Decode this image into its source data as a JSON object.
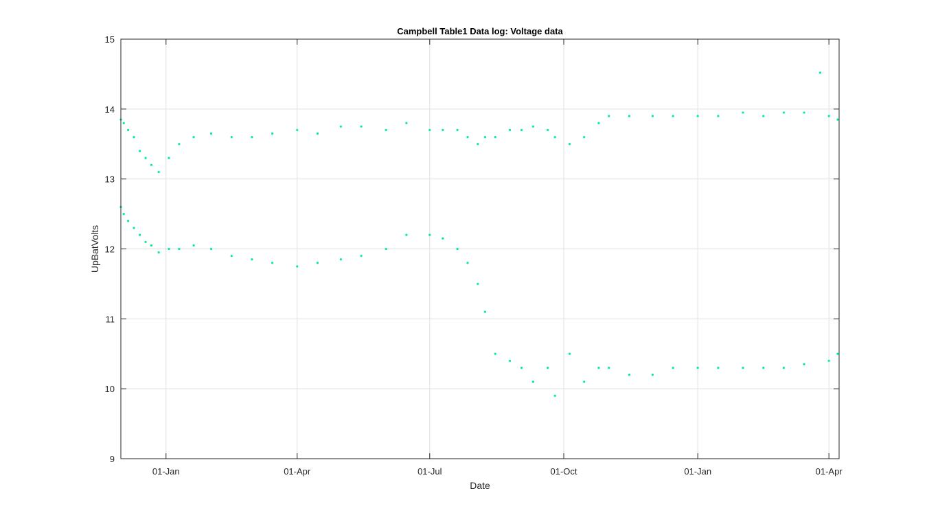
{
  "chart_data": {
    "type": "scatter",
    "title": "Campbell Table1 Data log: Voltage data",
    "xlabel": "Date",
    "ylabel": "UpBatVolts",
    "x_axis_kind": "date",
    "xlim": [
      "2017-12-01",
      "2019-04-08"
    ],
    "ylim": [
      9,
      15
    ],
    "yticks": [
      9,
      10,
      11,
      12,
      13,
      14,
      15
    ],
    "xticks": [
      {
        "date": "2018-01-01",
        "label": "01-Jan"
      },
      {
        "date": "2018-04-01",
        "label": "01-Apr"
      },
      {
        "date": "2018-07-01",
        "label": "01-Jul"
      },
      {
        "date": "2018-10-01",
        "label": "01-Oct"
      },
      {
        "date": "2019-01-01",
        "label": "01-Jan"
      },
      {
        "date": "2019-04-01",
        "label": "01-Apr"
      }
    ],
    "grid": true,
    "marker_color": "#00f08c",
    "series": [
      {
        "points": [
          [
            "2017-12-01",
            12.6
          ],
          [
            "2017-12-01",
            13.85
          ],
          [
            "2017-12-03",
            12.5
          ],
          [
            "2017-12-03",
            13.8
          ],
          [
            "2017-12-06",
            12.4
          ],
          [
            "2017-12-06",
            13.7
          ],
          [
            "2017-12-10",
            12.3
          ],
          [
            "2017-12-10",
            13.6
          ],
          [
            "2017-12-14",
            12.2
          ],
          [
            "2017-12-14",
            13.4
          ],
          [
            "2017-12-18",
            12.1
          ],
          [
            "2017-12-18",
            13.3
          ],
          [
            "2017-12-22",
            12.05
          ],
          [
            "2017-12-22",
            13.2
          ],
          [
            "2017-12-27",
            11.95
          ],
          [
            "2017-12-27",
            13.1
          ],
          [
            "2018-01-03",
            12.0
          ],
          [
            "2018-01-03",
            13.3
          ],
          [
            "2018-01-10",
            12.0
          ],
          [
            "2018-01-10",
            13.5
          ],
          [
            "2018-01-20",
            12.05
          ],
          [
            "2018-01-20",
            13.6
          ],
          [
            "2018-02-01",
            12.0
          ],
          [
            "2018-02-01",
            13.65
          ],
          [
            "2018-02-15",
            11.9
          ],
          [
            "2018-02-15",
            13.6
          ],
          [
            "2018-03-01",
            11.85
          ],
          [
            "2018-03-01",
            13.6
          ],
          [
            "2018-03-15",
            11.8
          ],
          [
            "2018-03-15",
            13.65
          ],
          [
            "2018-04-01",
            11.75
          ],
          [
            "2018-04-01",
            13.7
          ],
          [
            "2018-04-15",
            11.8
          ],
          [
            "2018-04-15",
            13.65
          ],
          [
            "2018-05-01",
            11.85
          ],
          [
            "2018-05-01",
            13.75
          ],
          [
            "2018-05-15",
            11.9
          ],
          [
            "2018-05-15",
            13.75
          ],
          [
            "2018-06-01",
            12.0
          ],
          [
            "2018-06-01",
            13.7
          ],
          [
            "2018-06-15",
            12.2
          ],
          [
            "2018-06-15",
            13.8
          ],
          [
            "2018-07-01",
            12.2
          ],
          [
            "2018-07-01",
            13.7
          ],
          [
            "2018-07-10",
            12.15
          ],
          [
            "2018-07-10",
            13.7
          ],
          [
            "2018-07-20",
            12.0
          ],
          [
            "2018-07-20",
            13.7
          ],
          [
            "2018-07-27",
            11.8
          ],
          [
            "2018-07-27",
            13.6
          ],
          [
            "2018-08-03",
            11.5
          ],
          [
            "2018-08-03",
            13.5
          ],
          [
            "2018-08-08",
            11.1
          ],
          [
            "2018-08-08",
            13.6
          ],
          [
            "2018-08-15",
            10.5
          ],
          [
            "2018-08-15",
            13.6
          ],
          [
            "2018-08-25",
            10.4
          ],
          [
            "2018-08-25",
            13.7
          ],
          [
            "2018-09-02",
            10.3
          ],
          [
            "2018-09-02",
            13.7
          ],
          [
            "2018-09-10",
            10.1
          ],
          [
            "2018-09-10",
            13.75
          ],
          [
            "2018-09-20",
            10.3
          ],
          [
            "2018-09-20",
            13.7
          ],
          [
            "2018-09-25",
            9.9
          ],
          [
            "2018-09-25",
            13.6
          ],
          [
            "2018-10-05",
            10.5
          ],
          [
            "2018-10-05",
            13.5
          ],
          [
            "2018-10-15",
            10.1
          ],
          [
            "2018-10-15",
            13.6
          ],
          [
            "2018-10-25",
            10.3
          ],
          [
            "2018-10-25",
            13.8
          ],
          [
            "2018-11-01",
            10.3
          ],
          [
            "2018-11-01",
            13.9
          ],
          [
            "2018-11-15",
            10.2
          ],
          [
            "2018-11-15",
            13.9
          ],
          [
            "2018-12-01",
            10.2
          ],
          [
            "2018-12-01",
            13.9
          ],
          [
            "2018-12-15",
            10.3
          ],
          [
            "2018-12-15",
            13.9
          ],
          [
            "2019-01-01",
            10.3
          ],
          [
            "2019-01-01",
            13.9
          ],
          [
            "2019-01-15",
            10.3
          ],
          [
            "2019-01-15",
            13.9
          ],
          [
            "2019-02-01",
            10.3
          ],
          [
            "2019-02-01",
            13.95
          ],
          [
            "2019-02-15",
            10.3
          ],
          [
            "2019-02-15",
            13.9
          ],
          [
            "2019-03-01",
            10.3
          ],
          [
            "2019-03-01",
            13.95
          ],
          [
            "2019-03-15",
            10.35
          ],
          [
            "2019-03-15",
            13.95
          ],
          [
            "2019-03-26",
            14.52
          ],
          [
            "2019-04-01",
            10.4
          ],
          [
            "2019-04-01",
            13.9
          ],
          [
            "2019-04-07",
            10.5
          ],
          [
            "2019-04-07",
            13.85
          ]
        ]
      }
    ]
  }
}
